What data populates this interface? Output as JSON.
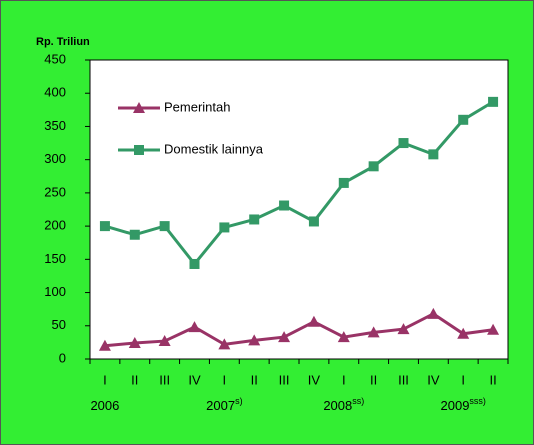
{
  "chart_data": {
    "type": "line",
    "title": "Rp. Triliun",
    "groups": [
      {
        "label": "2006",
        "categories": [
          "I",
          "II",
          "III",
          "IV"
        ]
      },
      {
        "label": "2007",
        "note": "s)",
        "categories": [
          "I",
          "II",
          "III",
          "IV"
        ]
      },
      {
        "label": "2008",
        "note": "ss)",
        "categories": [
          "I",
          "II",
          "III",
          "IV"
        ]
      },
      {
        "label": "2009",
        "note": "sss)",
        "categories": [
          "I",
          "II"
        ]
      }
    ],
    "series": [
      {
        "name": "Pemerintah",
        "color": "#993366",
        "marker": "triangle",
        "values": [
          20,
          24,
          27,
          48,
          22,
          28,
          33,
          56,
          33,
          40,
          45,
          68,
          38,
          44
        ]
      },
      {
        "name": "Domestik lainnya",
        "color": "#339966",
        "marker": "square",
        "values": [
          200,
          187,
          200,
          143,
          198,
          210,
          231,
          207,
          265,
          290,
          325,
          308,
          360,
          387
        ]
      }
    ],
    "ylim": [
      0,
      450
    ],
    "yticks": [
      0,
      50,
      100,
      150,
      200,
      250,
      300,
      350,
      400,
      450
    ],
    "grid": false
  }
}
